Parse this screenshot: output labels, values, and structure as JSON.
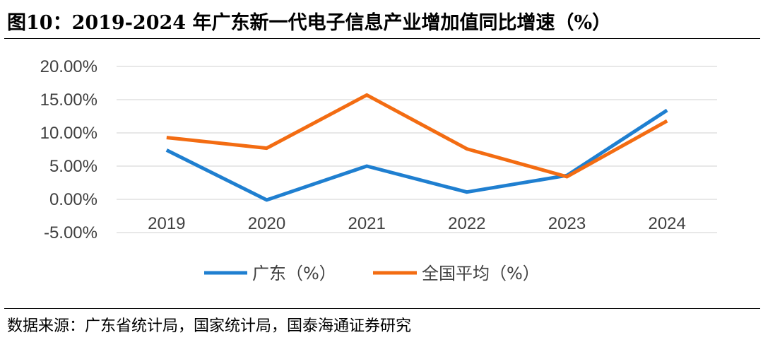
{
  "header": {
    "title": "图10：2019-2024 年广东新一代电子信息产业增加值同比增速（%）"
  },
  "footer": {
    "source": "数据来源：广东省统计局，国家统计局，国泰海通证券研究"
  },
  "colors": {
    "series_guangdong": "#1f7fd0",
    "series_national": "#f36c12",
    "gridline": "#d9d9d9",
    "tick_text": "#404040"
  },
  "chart_data": {
    "type": "line",
    "title": "",
    "xlabel": "",
    "ylabel": "",
    "categories": [
      "2019",
      "2020",
      "2021",
      "2022",
      "2023",
      "2024"
    ],
    "y_ticks": [
      -5,
      0,
      5,
      10,
      15,
      20
    ],
    "y_tick_labels": [
      "-5.00%",
      "0.00%",
      "5.00%",
      "10.00%",
      "15.00%",
      "20.00%"
    ],
    "ylim": [
      -5,
      20
    ],
    "grid": true,
    "legend_position": "bottom",
    "series": [
      {
        "name": "广东（%）",
        "values": [
          7.4,
          -0.1,
          5.0,
          1.1,
          3.6,
          13.4
        ]
      },
      {
        "name": "全国平均（%）",
        "values": [
          9.3,
          7.7,
          15.7,
          7.6,
          3.4,
          11.8
        ]
      }
    ]
  }
}
